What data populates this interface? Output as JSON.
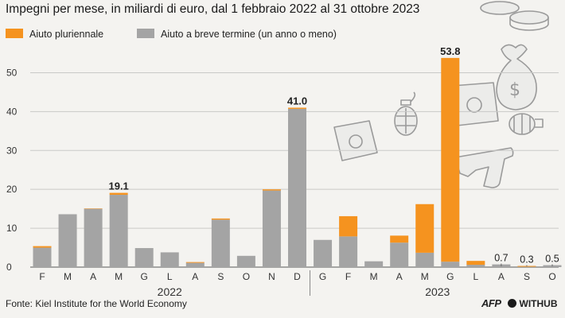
{
  "chart_data": {
    "type": "bar",
    "stacked": true,
    "title": "Impegni per mese, in miliardi di euro, dal 1 febbraio 2022 al 31 ottobre 2023",
    "ylim": [
      0,
      55
    ],
    "yticks": [
      0,
      10,
      20,
      30,
      40,
      50
    ],
    "categories": [
      "F",
      "M",
      "A",
      "M",
      "G",
      "L",
      "A",
      "S",
      "O",
      "N",
      "D",
      "G",
      "F",
      "M",
      "A",
      "M",
      "G",
      "L",
      "A",
      "S",
      "O"
    ],
    "years": [
      {
        "label": "2022",
        "from": 0,
        "to": 10
      },
      {
        "label": "2023",
        "from": 11,
        "to": 20
      }
    ],
    "series": [
      {
        "name": "Aiuto a breve termine (un anno o meno)",
        "color": "#a4a4a4",
        "values": [
          5.0,
          13.6,
          15.0,
          18.6,
          4.9,
          3.8,
          1.1,
          12.2,
          2.9,
          19.7,
          40.7,
          7.0,
          7.9,
          1.5,
          6.3,
          3.7,
          1.4,
          0.6,
          0.7,
          0.1,
          0.5
        ]
      },
      {
        "name": "Aiuto pluriennale",
        "color": "#f5931f",
        "values": [
          0.4,
          0.0,
          0.1,
          0.5,
          0.0,
          0.0,
          0.2,
          0.3,
          0.0,
          0.3,
          0.3,
          0.0,
          5.2,
          0.0,
          1.8,
          12.5,
          52.4,
          1.0,
          0.0,
          0.2,
          0.0
        ]
      }
    ],
    "data_labels": [
      {
        "index": 3,
        "text": "19.1",
        "bold": true
      },
      {
        "index": 10,
        "text": "41.0",
        "bold": true
      },
      {
        "index": 16,
        "text": "53.8",
        "bold": true
      },
      {
        "index": 18,
        "text": "0.7",
        "bold": false
      },
      {
        "index": 19,
        "text": "0.3",
        "bold": false
      },
      {
        "index": 20,
        "text": "0.5",
        "bold": false
      }
    ]
  },
  "source": "Fonte: Kiel Institute for the World Economy",
  "credits": {
    "afp": "AFP",
    "partner": "WITHUB"
  },
  "colors": {
    "multi": "#f5931f",
    "short": "#a4a4a4",
    "grid": "#c9c9c7"
  }
}
